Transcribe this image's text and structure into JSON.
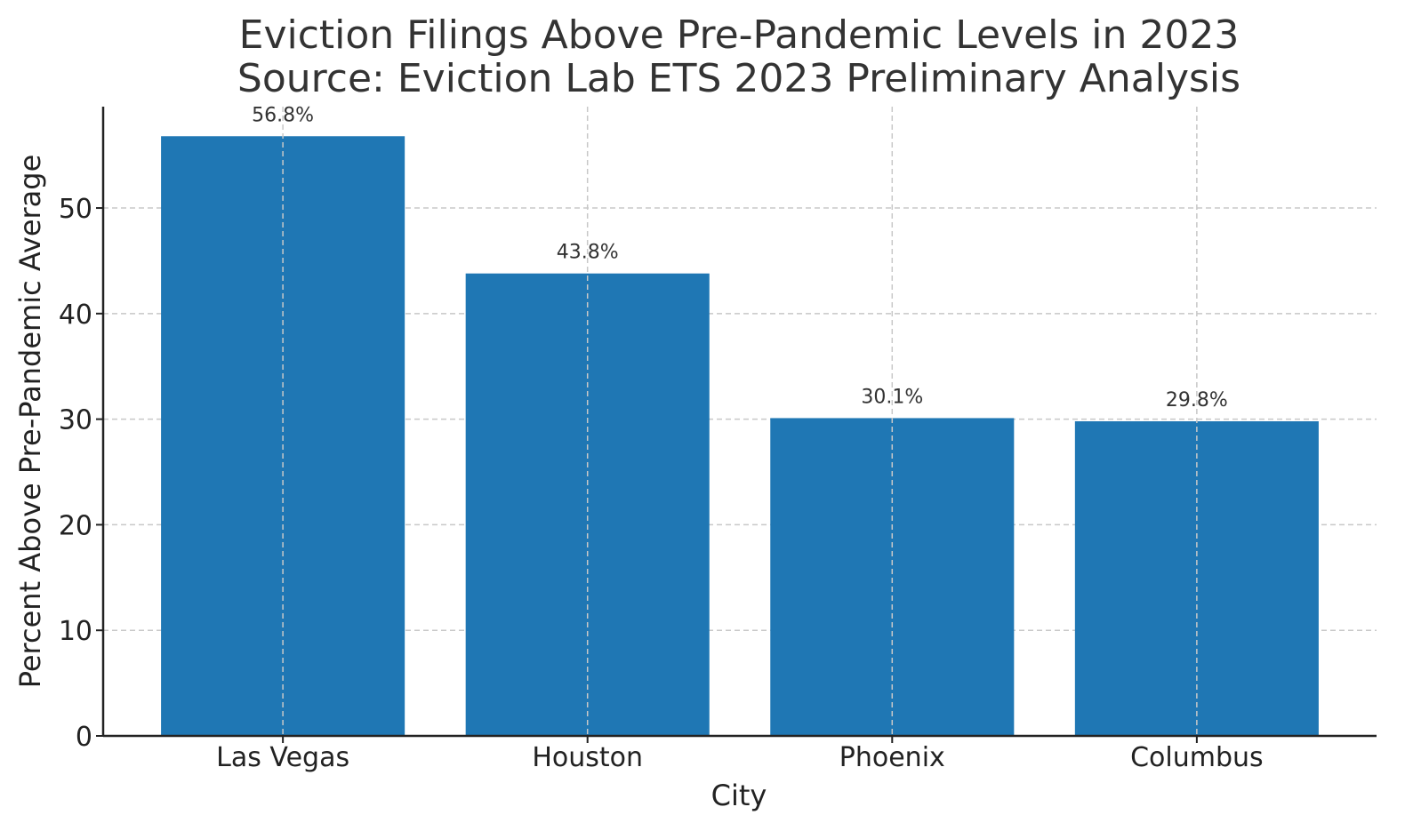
{
  "chart_data": {
    "type": "bar",
    "title_line1": "Eviction Filings Above Pre-Pandemic Levels in 2023",
    "title_line2": "Source: Eviction Lab ETS 2023 Preliminary Analysis",
    "xlabel": "City",
    "ylabel": "Percent Above Pre-Pandemic Average",
    "categories": [
      "Las Vegas",
      "Houston",
      "Phoenix",
      "Columbus"
    ],
    "values": [
      56.8,
      43.8,
      30.1,
      29.8
    ],
    "data_labels": [
      "56.8%",
      "43.8%",
      "30.1%",
      "29.8%"
    ],
    "yticks": [
      0,
      10,
      20,
      30,
      40,
      50
    ],
    "ylim": [
      0,
      59.6
    ],
    "grid": true,
    "colors": {
      "bar": "#1f77b4",
      "grid": "#c8c8c8",
      "axis": "#222222",
      "text": "#333333"
    }
  }
}
